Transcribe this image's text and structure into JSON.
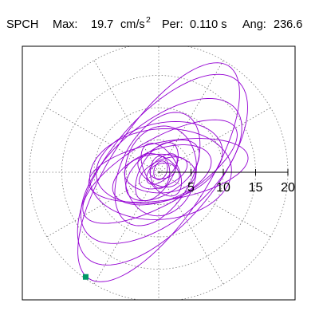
{
  "header": {
    "station": "SPCH",
    "max_label": "Max:",
    "max_value": "19.7",
    "max_unit": "cm/s",
    "max_unit_exp": "2",
    "per_label": "Per:",
    "per_value": "0.110 s",
    "ang_label": "Ang:",
    "ang_value": "236.6"
  },
  "colors": {
    "trace": "#9400d3",
    "marker": "#009966",
    "grid": "#777777",
    "axis": "#000000",
    "frame": "#000000",
    "background": "#ffffff"
  },
  "chart_data": {
    "type": "polar-particle-motion",
    "radial_max": 20,
    "grid_rings": [
      5,
      10,
      15,
      20
    ],
    "spoke_angle_step_deg": 30,
    "radial_tick_labels": [
      "5",
      "10",
      "15",
      "20"
    ],
    "max_amplitude": 19.7,
    "max_amplitude_unit": "cm/s^2",
    "period_s": 0.11,
    "azimuth_deg": 236.6,
    "marker": {
      "x": -11.3,
      "y": -16.2
    },
    "trace_loops": [
      {
        "semi_major": 19.7,
        "semi_minor": 7.5,
        "tilt_deg": 56.6,
        "cx": 0,
        "cy": 0,
        "start_deg": 180,
        "turns": 1.05
      },
      {
        "semi_major": 18.0,
        "semi_minor": 8.2,
        "tilt_deg": 50,
        "cx": 0.6,
        "cy": 0.4,
        "start_deg": 0,
        "turns": 1.0
      },
      {
        "semi_major": 15.0,
        "semi_minor": 7.5,
        "tilt_deg": 40,
        "cx": 0.4,
        "cy": 0.2,
        "start_deg": 40,
        "turns": 1.0
      },
      {
        "semi_major": 12.5,
        "semi_minor": 4.5,
        "tilt_deg": 10,
        "cx": 1.5,
        "cy": 0.3,
        "start_deg": 90,
        "turns": 1.0
      },
      {
        "semi_major": 11.0,
        "semi_minor": 7.0,
        "tilt_deg": 5,
        "cx": 0.3,
        "cy": -0.3,
        "start_deg": 10,
        "turns": 1.0
      },
      {
        "semi_major": 13.5,
        "semi_minor": 5.0,
        "tilt_deg": 30,
        "cx": 0.2,
        "cy": 0.1,
        "start_deg": 200,
        "turns": 1.0
      },
      {
        "semi_major": 9.5,
        "semi_minor": 5.5,
        "tilt_deg": 62,
        "cx": -0.2,
        "cy": 0.5,
        "start_deg": 60,
        "turns": 1.0
      },
      {
        "semi_major": 10.0,
        "semi_minor": 6.0,
        "tilt_deg": 15,
        "cx": 0.1,
        "cy": 1.5,
        "start_deg": 150,
        "turns": 1.0
      },
      {
        "semi_major": 8.0,
        "semi_minor": 4.0,
        "tilt_deg": 20,
        "cx": 0.5,
        "cy": -0.4,
        "start_deg": 300,
        "turns": 1.0
      },
      {
        "semi_major": 7.0,
        "semi_minor": 5.5,
        "tilt_deg": 80,
        "cx": 0.3,
        "cy": 0.2,
        "start_deg": 120,
        "turns": 1.0
      },
      {
        "semi_major": 6.5,
        "semi_minor": 3.5,
        "tilt_deg": 35,
        "cx": 0.6,
        "cy": 0.3,
        "start_deg": 20,
        "turns": 1.0
      },
      {
        "semi_major": 5.5,
        "semi_minor": 3.0,
        "tilt_deg": 0,
        "cx": 0.2,
        "cy": -0.2,
        "start_deg": 240,
        "turns": 1.0
      },
      {
        "semi_major": 5.0,
        "semi_minor": 2.5,
        "tilt_deg": 60,
        "cx": -0.3,
        "cy": 0.1,
        "start_deg": 80,
        "turns": 1.0
      },
      {
        "semi_major": 4.5,
        "semi_minor": 2.5,
        "tilt_deg": 120,
        "cx": 0.4,
        "cy": 0.4,
        "start_deg": 160,
        "turns": 1.0
      },
      {
        "semi_major": 4.0,
        "semi_minor": 2.0,
        "tilt_deg": 25,
        "cx": 0.7,
        "cy": -0.1,
        "start_deg": 10,
        "turns": 1.0
      },
      {
        "semi_major": 3.5,
        "semi_minor": 2.2,
        "tilt_deg": 150,
        "cx": 0.0,
        "cy": 0.3,
        "start_deg": 270,
        "turns": 1.0
      },
      {
        "semi_major": 3.0,
        "semi_minor": 1.5,
        "tilt_deg": 45,
        "cx": 0.5,
        "cy": 0.5,
        "start_deg": 50,
        "turns": 1.0
      },
      {
        "semi_major": 2.5,
        "semi_minor": 1.5,
        "tilt_deg": 90,
        "cx": 0.2,
        "cy": 0.0,
        "start_deg": 180,
        "turns": 1.0
      },
      {
        "semi_major": 2.0,
        "semi_minor": 1.2,
        "tilt_deg": 10,
        "cx": 0.6,
        "cy": 0.2,
        "start_deg": 300,
        "turns": 1.0
      },
      {
        "semi_major": 1.5,
        "semi_minor": 1.0,
        "tilt_deg": 70,
        "cx": 0.3,
        "cy": 0.3,
        "start_deg": 30,
        "turns": 1.0
      }
    ]
  }
}
